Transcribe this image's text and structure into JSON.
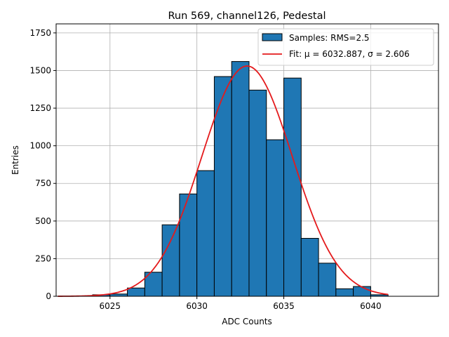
{
  "chart_data": {
    "type": "bar",
    "title": "Run 569, channel126, Pedestal",
    "xlabel": "ADC Counts",
    "ylabel": "Entries",
    "xlim": [
      6021.9,
      6043.9
    ],
    "ylim": [
      0,
      1810
    ],
    "grid": true,
    "legend_position": "upper-right",
    "bin_width": 1,
    "x_ticks": [
      6025,
      6030,
      6035,
      6040
    ],
    "y_ticks": [
      0,
      250,
      500,
      750,
      1000,
      1250,
      1500,
      1750
    ],
    "series": [
      {
        "name": "Samples: RMS=2.5",
        "kind": "histogram",
        "color": "#1f77b4",
        "edge_color": "#000000",
        "bin_edges": [
          6024,
          6025,
          6026,
          6027,
          6028,
          6029,
          6030,
          6031,
          6032,
          6033,
          6034,
          6035,
          6036,
          6037,
          6038,
          6039,
          6040,
          6041
        ],
        "values": [
          10,
          15,
          55,
          160,
          475,
          680,
          835,
          1460,
          1560,
          1370,
          1040,
          1450,
          385,
          220,
          50,
          65,
          10
        ]
      },
      {
        "name": "Fit: μ = 6032.887, σ = 2.606",
        "kind": "gaussian",
        "color": "#e41a1c",
        "mu": 6032.887,
        "sigma": 2.606,
        "amplitude": 1530,
        "x_range": [
          6022,
          6041
        ]
      }
    ]
  }
}
